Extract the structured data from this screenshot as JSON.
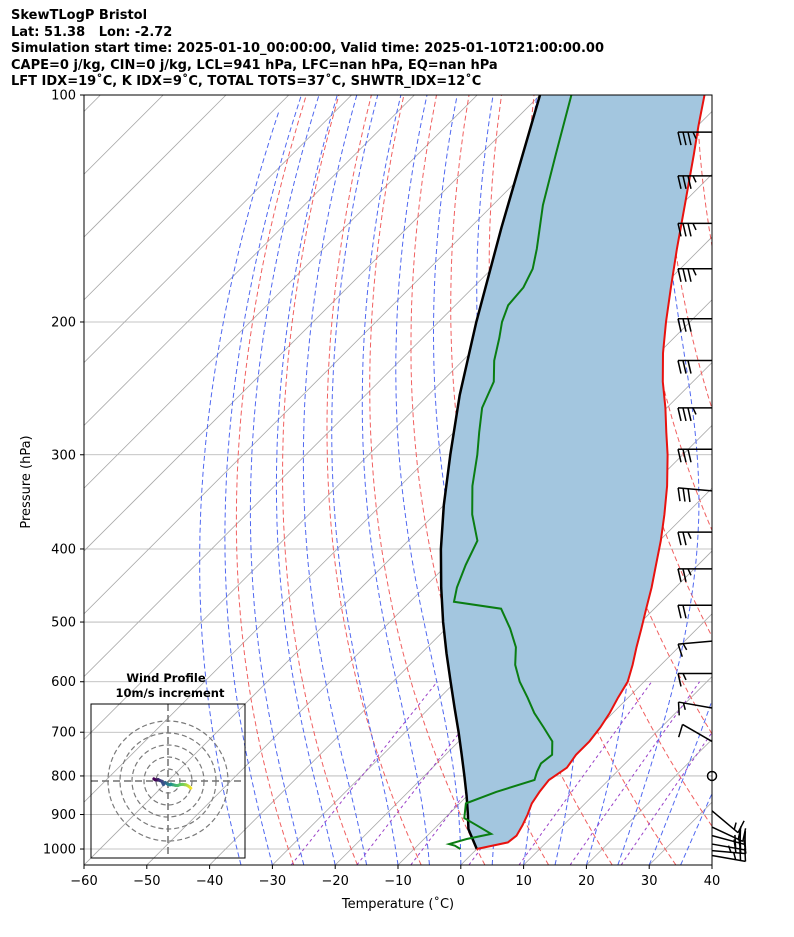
{
  "header": {
    "line1": "SkewTLogP Bristol",
    "line2": "Lat: 51.38   Lon: -2.72",
    "line3": "Simulation start time: 2025-01-10_00:00:00, Valid time: 2025-01-10T21:00:00.00",
    "line4": "CAPE=0 j/kg, CIN=0 j/kg, LCL=941 hPa, LFC=nan hPa, EQ=nan hPa",
    "line5": "LFT IDX=19˚C, K IDX=9˚C, TOTAL TOTS=37˚C, SHWTR_IDX=12˚C"
  },
  "chart_data": [
    {
      "type": "line",
      "subtype": "skew-t log-p",
      "xlabel": "Temperature (˚C)",
      "ylabel": "Pressure (hPa)",
      "xlim": [
        -60,
        40
      ],
      "ylim": [
        1050,
        100
      ],
      "y_scale": "log",
      "x_ticks": [
        -60,
        -50,
        -40,
        -30,
        -20,
        -10,
        0,
        10,
        20,
        30,
        40
      ],
      "y_ticks": [
        1000,
        900,
        800,
        700,
        600,
        500,
        400,
        300,
        200,
        100
      ],
      "grid": true,
      "colors": {
        "temperature": "#e8120f",
        "dewpoint": "#0a7d12",
        "parcel": "#000000",
        "shading": "#a3c6df",
        "dry_adiabats": "#f06060",
        "moist_adiabats": "#5068f0",
        "mixing_ratio": "#9a40c8",
        "isotherms": "#a8a8a8"
      },
      "series": [
        {
          "key": "temperature",
          "p": [
            1000,
            980,
            960,
            930,
            900,
            870,
            840,
            810,
            780,
            750,
            720,
            690,
            660,
            630,
            600,
            570,
            540,
            510,
            480,
            450,
            420,
            390,
            360,
            330,
            300,
            280,
            260,
            240,
            220,
            200,
            180,
            160,
            140,
            120,
            110,
            100
          ],
          "t": [
            0.0,
            3.9,
            4.2,
            3.5,
            2.6,
            1.5,
            0.9,
            0.5,
            1.4,
            0.8,
            0.8,
            0.3,
            -0.5,
            -1.6,
            -2.6,
            -4.5,
            -6.7,
            -8.9,
            -11.3,
            -13.8,
            -16.7,
            -19.8,
            -23.4,
            -27.5,
            -32.4,
            -36.2,
            -40.2,
            -44.8,
            -49.3,
            -53.8,
            -58.5,
            -63.7,
            -69.4,
            -76.0,
            -79.8,
            -83.8
          ]
        },
        {
          "key": "dewpoint",
          "p": [
            1000,
            990,
            985,
            970,
            955,
            930,
            910,
            870,
            840,
            810,
            790,
            770,
            750,
            720,
            690,
            660,
            630,
            600,
            570,
            540,
            510,
            480,
            470,
            450,
            420,
            390,
            360,
            330,
            300,
            280,
            260,
            240,
            225,
            210,
            200,
            190,
            180,
            170,
            160,
            140,
            120,
            100
          ],
          "t": [
            -2.6,
            -4.0,
            -5.2,
            -3.2,
            -0.1,
            -3.8,
            -6.9,
            -9.0,
            -6.0,
            -1.8,
            -2.7,
            -3.4,
            -3.0,
            -5.1,
            -8.7,
            -12.5,
            -16.0,
            -19.8,
            -23.2,
            -25.9,
            -29.8,
            -34.4,
            -43.0,
            -44.8,
            -47.0,
            -49.0,
            -54.0,
            -58.5,
            -62.7,
            -66.0,
            -69.4,
            -71.7,
            -75.0,
            -77.8,
            -79.9,
            -81.6,
            -82.0,
            -83.5,
            -86.0,
            -92.0,
            -98.0,
            -105.0
          ]
        },
        {
          "key": "parcel",
          "p": [
            1000,
            941,
            900,
            850,
            800,
            750,
            700,
            650,
            600,
            550,
            500,
            450,
            400,
            350,
            300,
            250,
            200,
            150,
            100
          ],
          "t": [
            0.0,
            -4.5,
            -6.9,
            -10.1,
            -13.6,
            -17.4,
            -21.5,
            -26.0,
            -30.8,
            -36.0,
            -41.5,
            -47.3,
            -53.5,
            -60.0,
            -67.0,
            -75.0,
            -84.0,
            -95.0,
            -110.0
          ]
        }
      ],
      "shaded_region": "between temperature and parcel",
      "wind_barbs": {
        "p": [
          1020,
          1005,
          985,
          960,
          935,
          890,
          800,
          720,
          650,
          585,
          530,
          475,
          425,
          380,
          335,
          295,
          260,
          225,
          198,
          170,
          148,
          128,
          112
        ],
        "speed_kt": [
          25,
          35,
          30,
          20,
          20,
          15,
          0,
          10,
          15,
          15,
          15,
          20,
          25,
          25,
          30,
          30,
          35,
          30,
          30,
          35,
          35,
          35,
          35
        ],
        "direction_deg": [
          100,
          95,
          100,
          105,
          115,
          130,
          0,
          300,
          280,
          270,
          265,
          270,
          270,
          270,
          275,
          270,
          270,
          270,
          270,
          270,
          270,
          270,
          270
        ]
      },
      "inset": {
        "title": "Wind Profile",
        "subtitle": "10m/s increment",
        "hodograph": {
          "u": [
            9.5,
            9.0,
            8.3,
            7.5,
            6.8,
            6.0,
            5.0,
            4.0,
            3.0,
            2.2,
            1.6,
            1.2,
            0.8,
            0.0,
            -0.6,
            -1.2,
            -1.5,
            -1.9,
            -2.6,
            -3.4,
            -4.1,
            -4.6,
            -5.0,
            -5.5,
            -5.9
          ],
          "v": [
            -3.0,
            -2.5,
            -2.0,
            -1.6,
            -1.5,
            -1.4,
            -1.5,
            -1.9,
            -1.8,
            -1.6,
            -1.5,
            -1.3,
            -1.6,
            -1.4,
            -1.0,
            -0.6,
            -0.9,
            -1.5,
            -0.1,
            0.2,
            0.6,
            0.5,
            0.4,
            0.6,
            0.9
          ]
        },
        "rings": [
          5,
          10,
          15,
          20,
          25
        ]
      }
    }
  ]
}
